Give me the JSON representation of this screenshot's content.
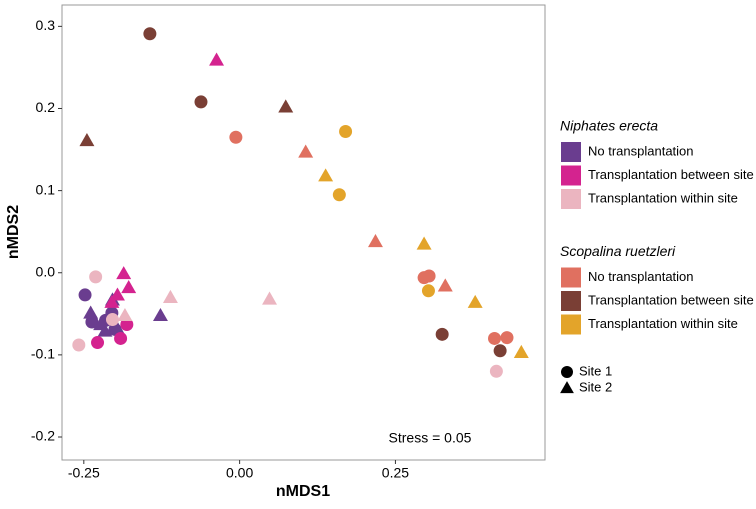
{
  "chart_data": {
    "type": "scatter",
    "xlabel": "nMDS1",
    "ylabel": "nMDS2",
    "annotation": "Stress = 0.05",
    "xlim": [
      -0.285,
      0.49
    ],
    "ylim": [
      -0.228,
      0.326
    ],
    "xticks": [
      {
        "value": -0.25,
        "label": "-0.25"
      },
      {
        "value": 0,
        "label": "0.00"
      },
      {
        "value": 0.25,
        "label": "0.25"
      }
    ],
    "yticks": [
      {
        "value": -0.2,
        "label": "-0.2"
      },
      {
        "value": -0.1,
        "label": "-0.1"
      },
      {
        "value": 0,
        "label": "0.0"
      },
      {
        "value": 0.1,
        "label": "0.1"
      },
      {
        "value": 0.2,
        "label": "0.2"
      },
      {
        "value": 0.3,
        "label": "0.3"
      }
    ],
    "groups": [
      "Niphates erecta",
      "Scopalina ruetzleri"
    ],
    "shapes": [
      {
        "label": "Site 1",
        "marker": "circle"
      },
      {
        "label": "Site 2",
        "marker": "triangle"
      }
    ],
    "series": [
      {
        "name": "No transplantation",
        "group": 0,
        "color": "#6a3d8f",
        "x": [
          -0.248,
          -0.237,
          -0.205,
          -0.215,
          -0.2,
          -0.239,
          -0.223,
          -0.216,
          -0.204,
          -0.197,
          -0.127
        ],
        "y": [
          -0.027,
          -0.06,
          -0.049,
          -0.058,
          -0.069,
          -0.049,
          -0.063,
          -0.071,
          -0.033,
          -0.067,
          -0.052
        ],
        "sites": [
          0,
          0,
          0,
          0,
          0,
          1,
          1,
          1,
          1,
          1,
          1
        ]
      },
      {
        "name": "Transplantation between site",
        "group": 0,
        "color": "#d4238f",
        "x": [
          -0.228,
          -0.181,
          -0.191,
          -0.037,
          -0.186,
          -0.178,
          -0.196,
          -0.205
        ],
        "y": [
          -0.085,
          -0.063,
          -0.08,
          0.259,
          -0.001,
          -0.018,
          -0.027,
          -0.036
        ],
        "sites": [
          0,
          0,
          0,
          1,
          1,
          1,
          1,
          1
        ]
      },
      {
        "name": "Transplantation within site",
        "group": 0,
        "color": "#ebb5c0",
        "x": [
          -0.231,
          -0.258,
          -0.204,
          0.412,
          -0.111,
          0.048,
          -0.184
        ],
        "y": [
          -0.005,
          -0.088,
          -0.057,
          -0.12,
          -0.03,
          -0.032,
          -0.052
        ],
        "sites": [
          0,
          0,
          0,
          0,
          1,
          1,
          1
        ]
      },
      {
        "name": "No transplantation",
        "group": 1,
        "color": "#e07060",
        "x": [
          -0.006,
          0.296,
          0.304,
          0.409,
          0.429,
          0.106,
          0.218,
          0.33
        ],
        "y": [
          0.165,
          -0.006,
          -0.004,
          -0.08,
          -0.079,
          0.147,
          0.038,
          -0.016
        ],
        "sites": [
          0,
          0,
          0,
          0,
          0,
          1,
          1,
          1
        ]
      },
      {
        "name": "Transplantation between site",
        "group": 1,
        "color": "#7a3f35",
        "x": [
          -0.144,
          -0.062,
          0.325,
          0.418,
          -0.245,
          0.074
        ],
        "y": [
          0.291,
          0.208,
          -0.075,
          -0.095,
          0.161,
          0.202
        ],
        "sites": [
          0,
          0,
          0,
          0,
          1,
          1
        ]
      },
      {
        "name": "Transplantation within site",
        "group": 1,
        "color": "#e3a42a",
        "x": [
          0.17,
          0.16,
          0.303,
          0.138,
          0.296,
          0.378,
          0.452
        ],
        "y": [
          0.172,
          0.095,
          -0.022,
          0.118,
          0.035,
          -0.036,
          -0.097
        ],
        "sites": [
          0,
          0,
          0,
          1,
          1,
          1,
          1
        ]
      }
    ]
  }
}
